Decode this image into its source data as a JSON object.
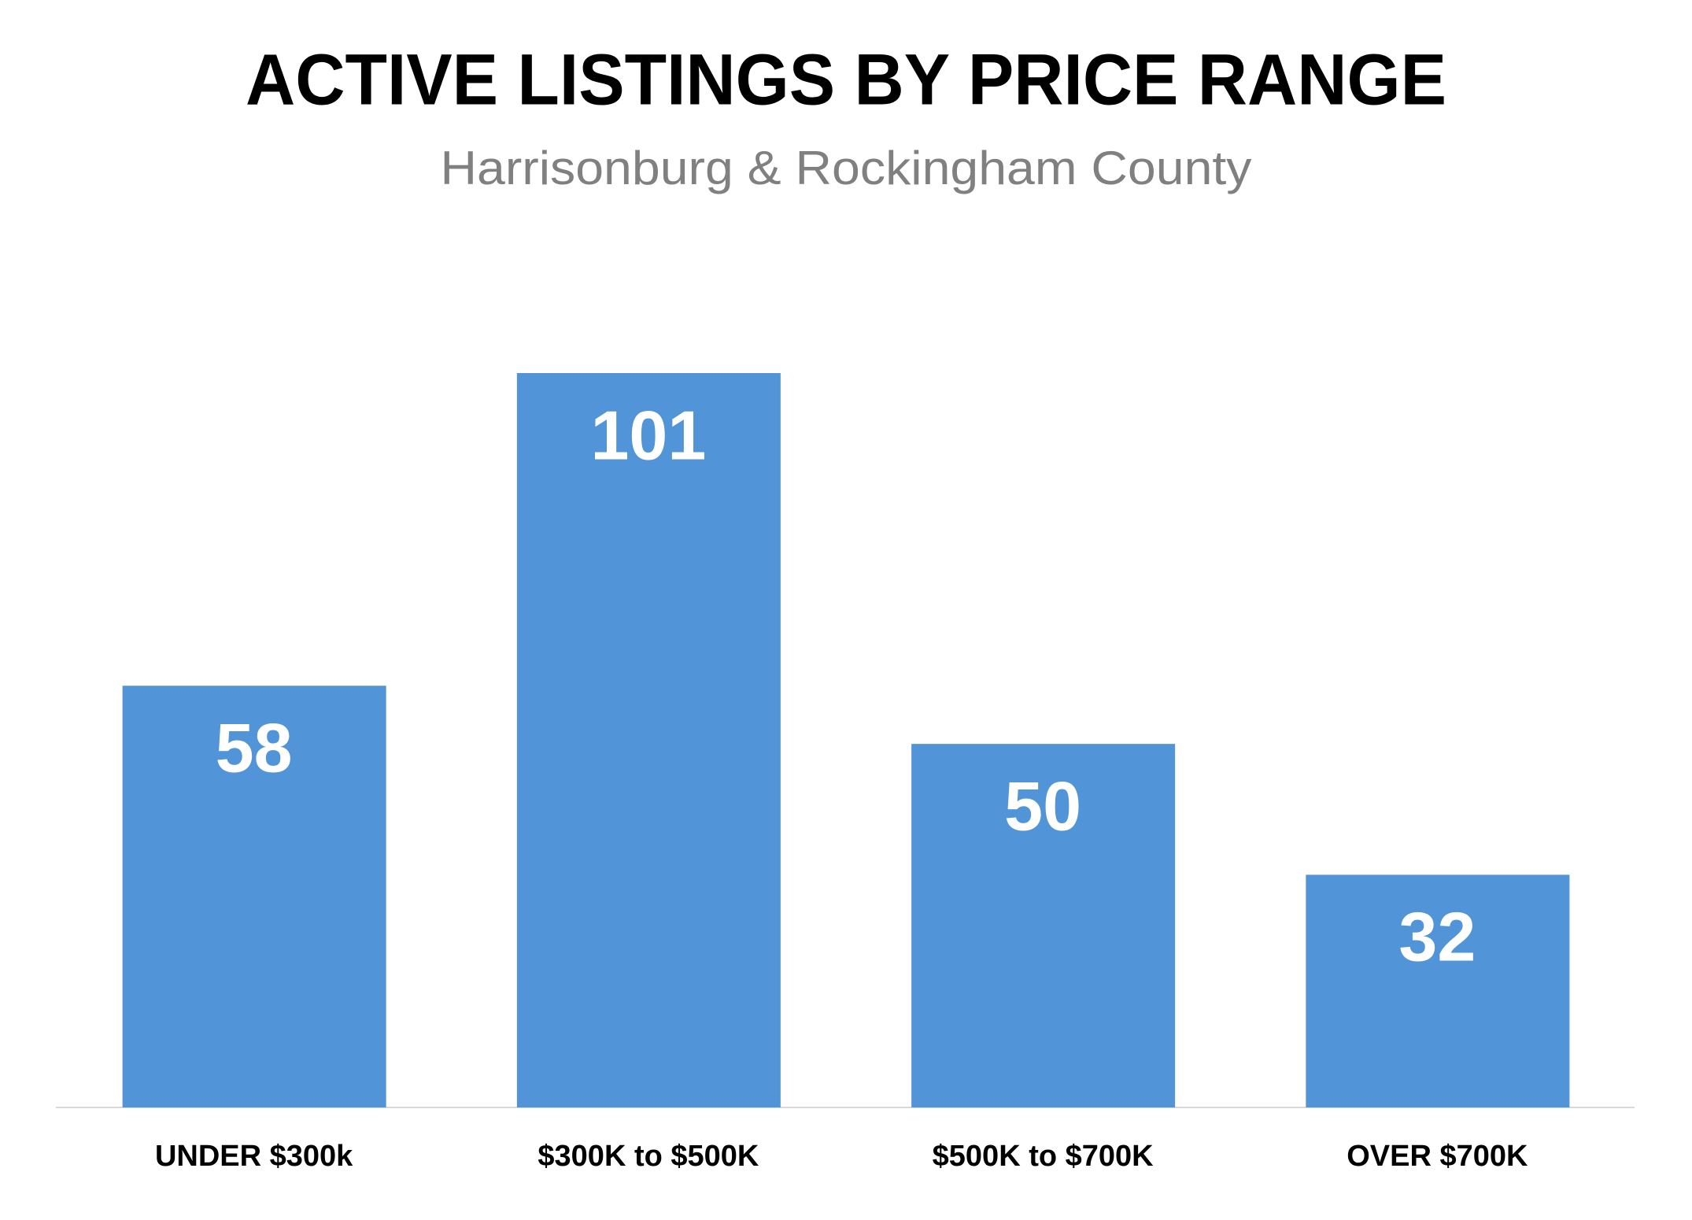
{
  "chart_data": {
    "type": "bar",
    "title": "ACTIVE LISTINGS BY PRICE RANGE",
    "subtitle": "Harrisonburg & Rockingham County",
    "categories": [
      "UNDER $300k",
      "$300K to $500K",
      "$500K to $700K",
      "OVER $700K"
    ],
    "values": [
      58,
      101,
      50,
      32
    ],
    "color": "#5195d8"
  }
}
